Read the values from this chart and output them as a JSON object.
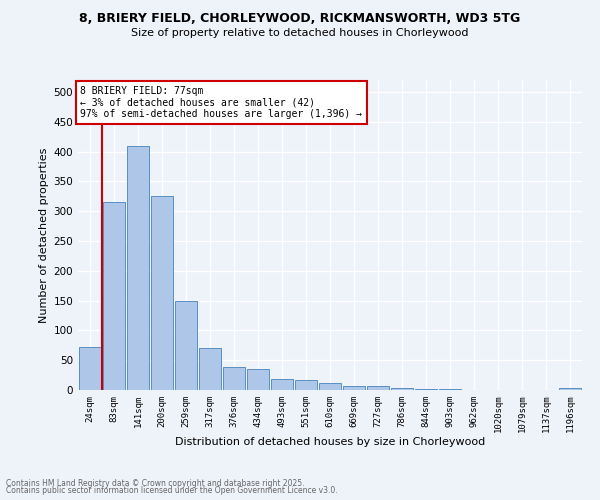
{
  "title1": "8, BRIERY FIELD, CHORLEYWOOD, RICKMANSWORTH, WD3 5TG",
  "title2": "Size of property relative to detached houses in Chorleywood",
  "xlabel": "Distribution of detached houses by size in Chorleywood",
  "ylabel": "Number of detached properties",
  "categories": [
    "24sqm",
    "83sqm",
    "141sqm",
    "200sqm",
    "259sqm",
    "317sqm",
    "376sqm",
    "434sqm",
    "493sqm",
    "551sqm",
    "610sqm",
    "669sqm",
    "727sqm",
    "786sqm",
    "844sqm",
    "903sqm",
    "962sqm",
    "1020sqm",
    "1079sqm",
    "1137sqm",
    "1196sqm"
  ],
  "values": [
    72,
    315,
    410,
    325,
    150,
    70,
    38,
    36,
    18,
    16,
    12,
    7,
    7,
    3,
    2,
    1,
    0,
    0,
    0,
    0,
    3
  ],
  "bar_color": "#aec6e8",
  "bar_edge_color": "#5a8fc2",
  "vline_color": "#cc0000",
  "annotation_text": "8 BRIERY FIELD: 77sqm\n← 3% of detached houses are smaller (42)\n97% of semi-detached houses are larger (1,396) →",
  "annotation_box_color": "#ffffff",
  "annotation_box_edge": "#cc0000",
  "ylim": [
    0,
    520
  ],
  "yticks": [
    0,
    50,
    100,
    150,
    200,
    250,
    300,
    350,
    400,
    450,
    500
  ],
  "footnote1": "Contains HM Land Registry data © Crown copyright and database right 2025.",
  "footnote2": "Contains public sector information licensed under the Open Government Licence v3.0.",
  "bg_color": "#eef2f9",
  "grid_color": "#ffffff"
}
